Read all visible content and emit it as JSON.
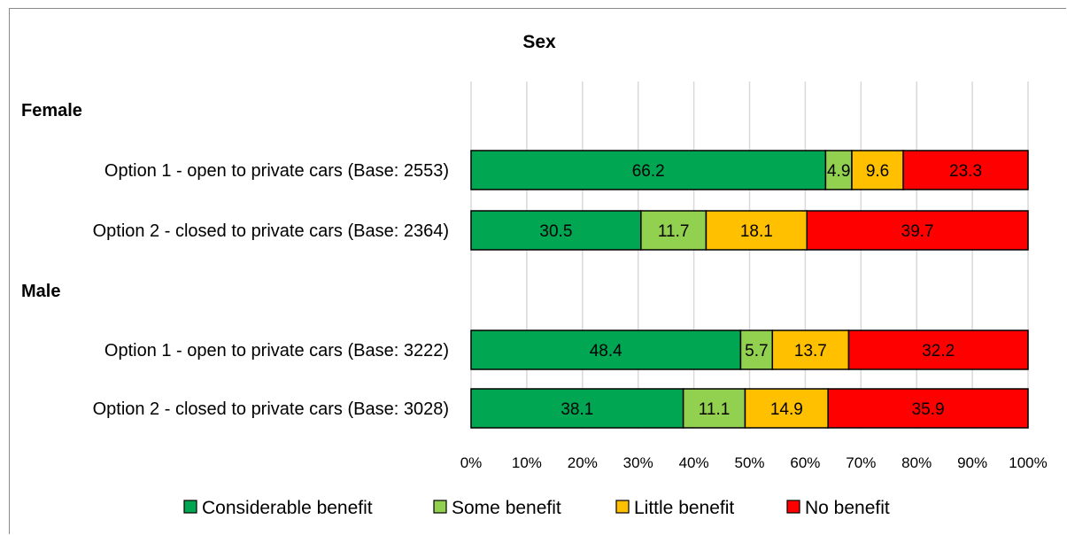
{
  "chart_data": {
    "type": "bar",
    "stacked": true,
    "orientation": "horizontal",
    "title": "Sex",
    "groups": [
      {
        "name": "Female",
        "rows": [
          {
            "label": "Option 1  - open to private cars (Base: 2553)",
            "values": [
              66.2,
              4.9,
              9.6,
              23.3
            ]
          },
          {
            "label": "Option 2 - closed to private cars (Base: 2364)",
            "values": [
              30.5,
              11.7,
              18.1,
              39.7
            ]
          }
        ]
      },
      {
        "name": "Male",
        "rows": [
          {
            "label": "Option 1  - open to private cars (Base: 3222)",
            "values": [
              48.4,
              5.7,
              13.7,
              32.2
            ]
          },
          {
            "label": "Option 2 - closed to private cars (Base: 3028)",
            "values": [
              38.1,
              11.1,
              14.9,
              35.9
            ]
          }
        ]
      }
    ],
    "series": [
      {
        "name": "Considerable benefit",
        "color": "#00a651"
      },
      {
        "name": "Some benefit",
        "color": "#92d050"
      },
      {
        "name": "Little benefit",
        "color": "#ffc000"
      },
      {
        "name": "No benefit",
        "color": "#ff0000"
      }
    ],
    "xticks": [
      "0%",
      "10%",
      "20%",
      "30%",
      "40%",
      "50%",
      "60%",
      "70%",
      "80%",
      "90%",
      "100%"
    ],
    "xlim": [
      0,
      100
    ],
    "grid": true,
    "legend_position": "bottom"
  }
}
